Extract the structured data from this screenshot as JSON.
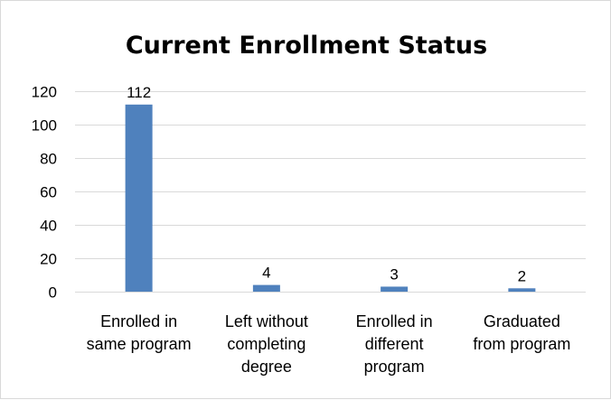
{
  "chart_data": {
    "type": "bar",
    "title": "Current Enrollment Status",
    "xlabel": "",
    "ylabel": "",
    "categories": [
      [
        "Enrolled in",
        "same program"
      ],
      [
        "Left without",
        "completing",
        "degree"
      ],
      [
        "Enrolled in",
        "different",
        "program"
      ],
      [
        "Graduated",
        "from program"
      ]
    ],
    "values": [
      112,
      4,
      3,
      2
    ],
    "data_labels": [
      "112",
      "4",
      "3",
      "2"
    ],
    "ylim": [
      0,
      120
    ],
    "yticks": [
      0,
      20,
      40,
      60,
      80,
      100,
      120
    ],
    "grid": true,
    "legend": false,
    "colors": {
      "bar": "#4f81bd",
      "grid": "#d9d9d9",
      "axis": "#d9d9d9"
    }
  }
}
